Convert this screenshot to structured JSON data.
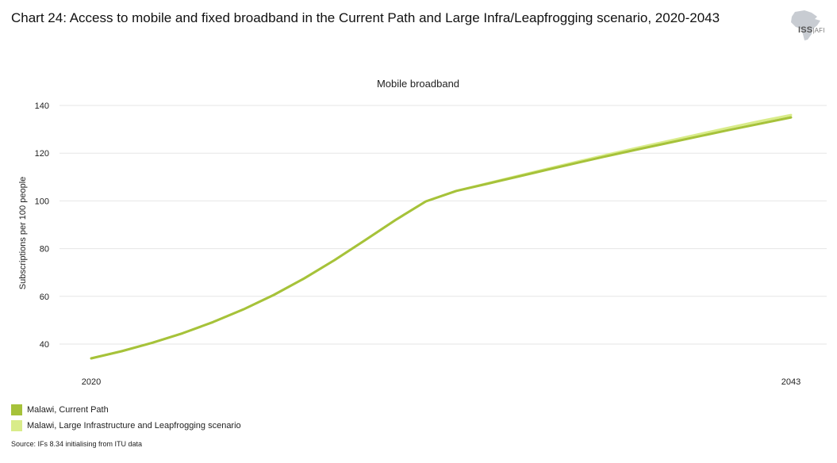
{
  "title": "Chart 24: Access to mobile and fixed broadband in the Current Path and Large Infra/Leapfrogging scenario, 2020-2043",
  "logo": {
    "main": "ISS",
    "sub": "AFI"
  },
  "source": "Source: IFs 8.34 initialising from ITU data",
  "colors": {
    "current_path": "#a6c23a",
    "scenario": "#d9ec8a",
    "grid": "#e6e6e6"
  },
  "chart_data": {
    "type": "line",
    "title": "Mobile broadband",
    "xlabel": "",
    "ylabel": "Subscriptions per 100 people",
    "xlim": [
      2020,
      2043
    ],
    "ylim": [
      34,
      142
    ],
    "yticks": [
      40,
      60,
      80,
      100,
      120,
      140
    ],
    "xtick_labels": [
      "2020",
      "2043"
    ],
    "grid": true,
    "legend_position": "bottom-left",
    "x": [
      2020,
      2021,
      2022,
      2023,
      2024,
      2025,
      2026,
      2027,
      2028,
      2029,
      2030,
      2031,
      2032,
      2033,
      2034,
      2035,
      2036,
      2037,
      2038,
      2039,
      2040,
      2041,
      2042,
      2043
    ],
    "series": [
      {
        "name": "Malawi, Large Infrastructure and Leapfrogging scenario",
        "values": [
          34,
          37,
          40.5,
          44.5,
          49.2,
          54.5,
          60.6,
          67.5,
          75.2,
          83.5,
          92,
          99.8,
          104.2,
          107.3,
          110.4,
          113.5,
          116.5,
          119.5,
          122.4,
          125.2,
          128,
          130.8,
          133.5,
          136
        ]
      },
      {
        "name": "Malawi, Current Path",
        "values": [
          34,
          37,
          40.5,
          44.5,
          49.2,
          54.5,
          60.6,
          67.5,
          75.2,
          83.5,
          92,
          99.8,
          104.2,
          107.1,
          110.1,
          113.1,
          116,
          118.9,
          121.7,
          124.4,
          127.1,
          129.8,
          132.4,
          135
        ]
      }
    ]
  }
}
